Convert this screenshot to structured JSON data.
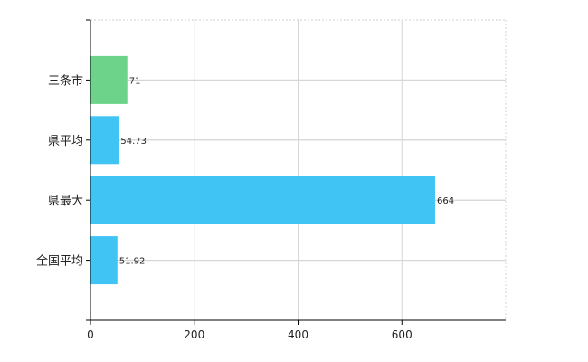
{
  "chart_data": {
    "type": "bar",
    "orientation": "horizontal",
    "categories": [
      "三条市",
      "県平均",
      "県最大",
      "全国平均"
    ],
    "values": [
      71,
      54.73,
      664,
      51.92
    ],
    "value_labels": [
      "71",
      "54.73",
      "664",
      "51.92"
    ],
    "bar_colors": [
      "#6dd38a",
      "#40c4f4",
      "#40c4f4",
      "#40c4f4"
    ],
    "xlim": [
      0,
      800
    ],
    "x_ticks": [
      0,
      200,
      400,
      600
    ],
    "x_tick_labels": [
      "0",
      "200",
      "400",
      "600"
    ],
    "grid": true,
    "title": "",
    "xlabel": "",
    "ylabel": ""
  }
}
